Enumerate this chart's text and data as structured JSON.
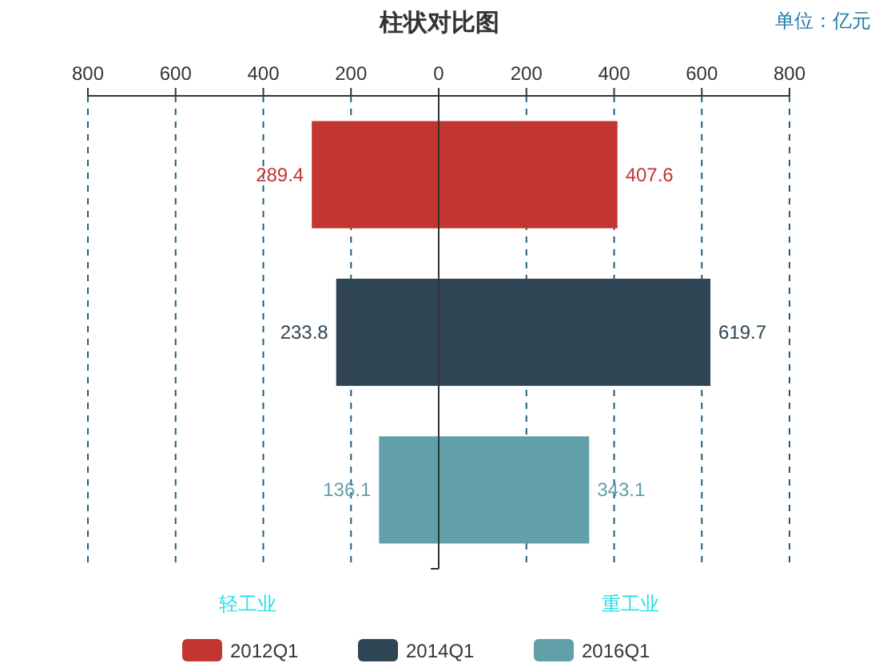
{
  "chart_data": [
    {
      "type": "bar",
      "title": "柱状对比图",
      "xlabel": "轻工业",
      "orientation": "horizontal",
      "categories": [
        null,
        null,
        null
      ],
      "series": [
        {
          "color": "#c23531",
          "values": [
            289.4,
            null,
            null
          ]
        },
        {
          "color": "#2f4554",
          "values": [
            null,
            233.8,
            null
          ]
        },
        {
          "color": "#61a0a8",
          "values": [
            null,
            null,
            136.1
          ]
        }
      ],
      "xlim": [
        800,
        0
      ],
      "xticks": [
        800,
        600,
        400,
        200,
        0
      ],
      "tick_labels": "x",
      "grid": "x",
      "data_labels": true
    },
    {
      "type": "bar",
      "xlabel": "重工业",
      "annotations": [
        "单位：亿元"
      ],
      "orientation": "horizontal",
      "categories": [
        null,
        null,
        null
      ],
      "series": [
        {
          "name": "2012Q1",
          "color": "#c23531",
          "values": [
            407.6,
            null,
            null
          ]
        },
        {
          "name": "2014Q1",
          "color": "#2f4554",
          "values": [
            null,
            619.7,
            null
          ]
        },
        {
          "name": "2016Q1",
          "color": "#61a0a8",
          "values": [
            null,
            null,
            343.1
          ]
        }
      ],
      "xlim": [
        0,
        800
      ],
      "xticks": [
        {
          "value": 0,
          "label": null
        },
        200,
        400,
        600,
        800
      ],
      "tick_labels": "x",
      "grid": "x",
      "data_labels": true,
      "legend": "bottom"
    }
  ]
}
